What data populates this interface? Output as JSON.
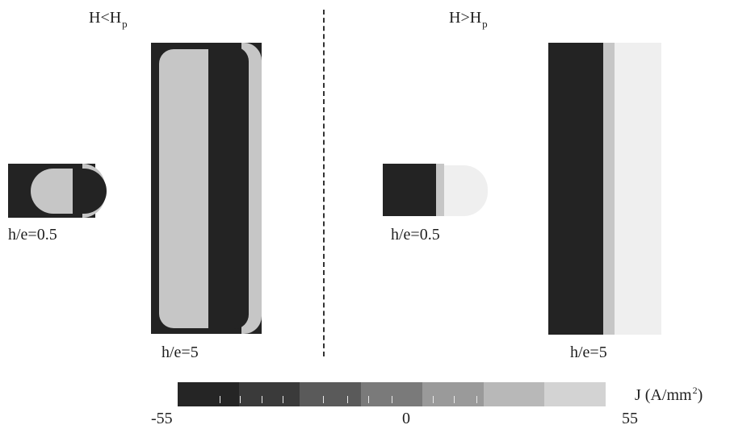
{
  "left_header": {
    "main": "H<H",
    "sub": "p"
  },
  "right_header": {
    "main": "H>H",
    "sub": "p"
  },
  "labels": {
    "left_small": "h/e=0.5",
    "left_large": "h/e=5",
    "right_small": "h/e=0.5",
    "right_large": "h/e=5"
  },
  "colorbar": {
    "min_label": "-55",
    "mid_label": "0",
    "max_label": "55",
    "unit_prefix": "J (A/mm",
    "unit_exp": "2",
    "unit_suffix": ")",
    "colors": [
      "#252525",
      "#3a3a3a",
      "#5a5a5a",
      "#7a7a7a",
      "#9a9a9a",
      "#b8b8b8",
      "#d3d3d3"
    ]
  },
  "colors": {
    "dark": "#232323",
    "light": "#c6c6c6",
    "pale": "#efefef"
  }
}
